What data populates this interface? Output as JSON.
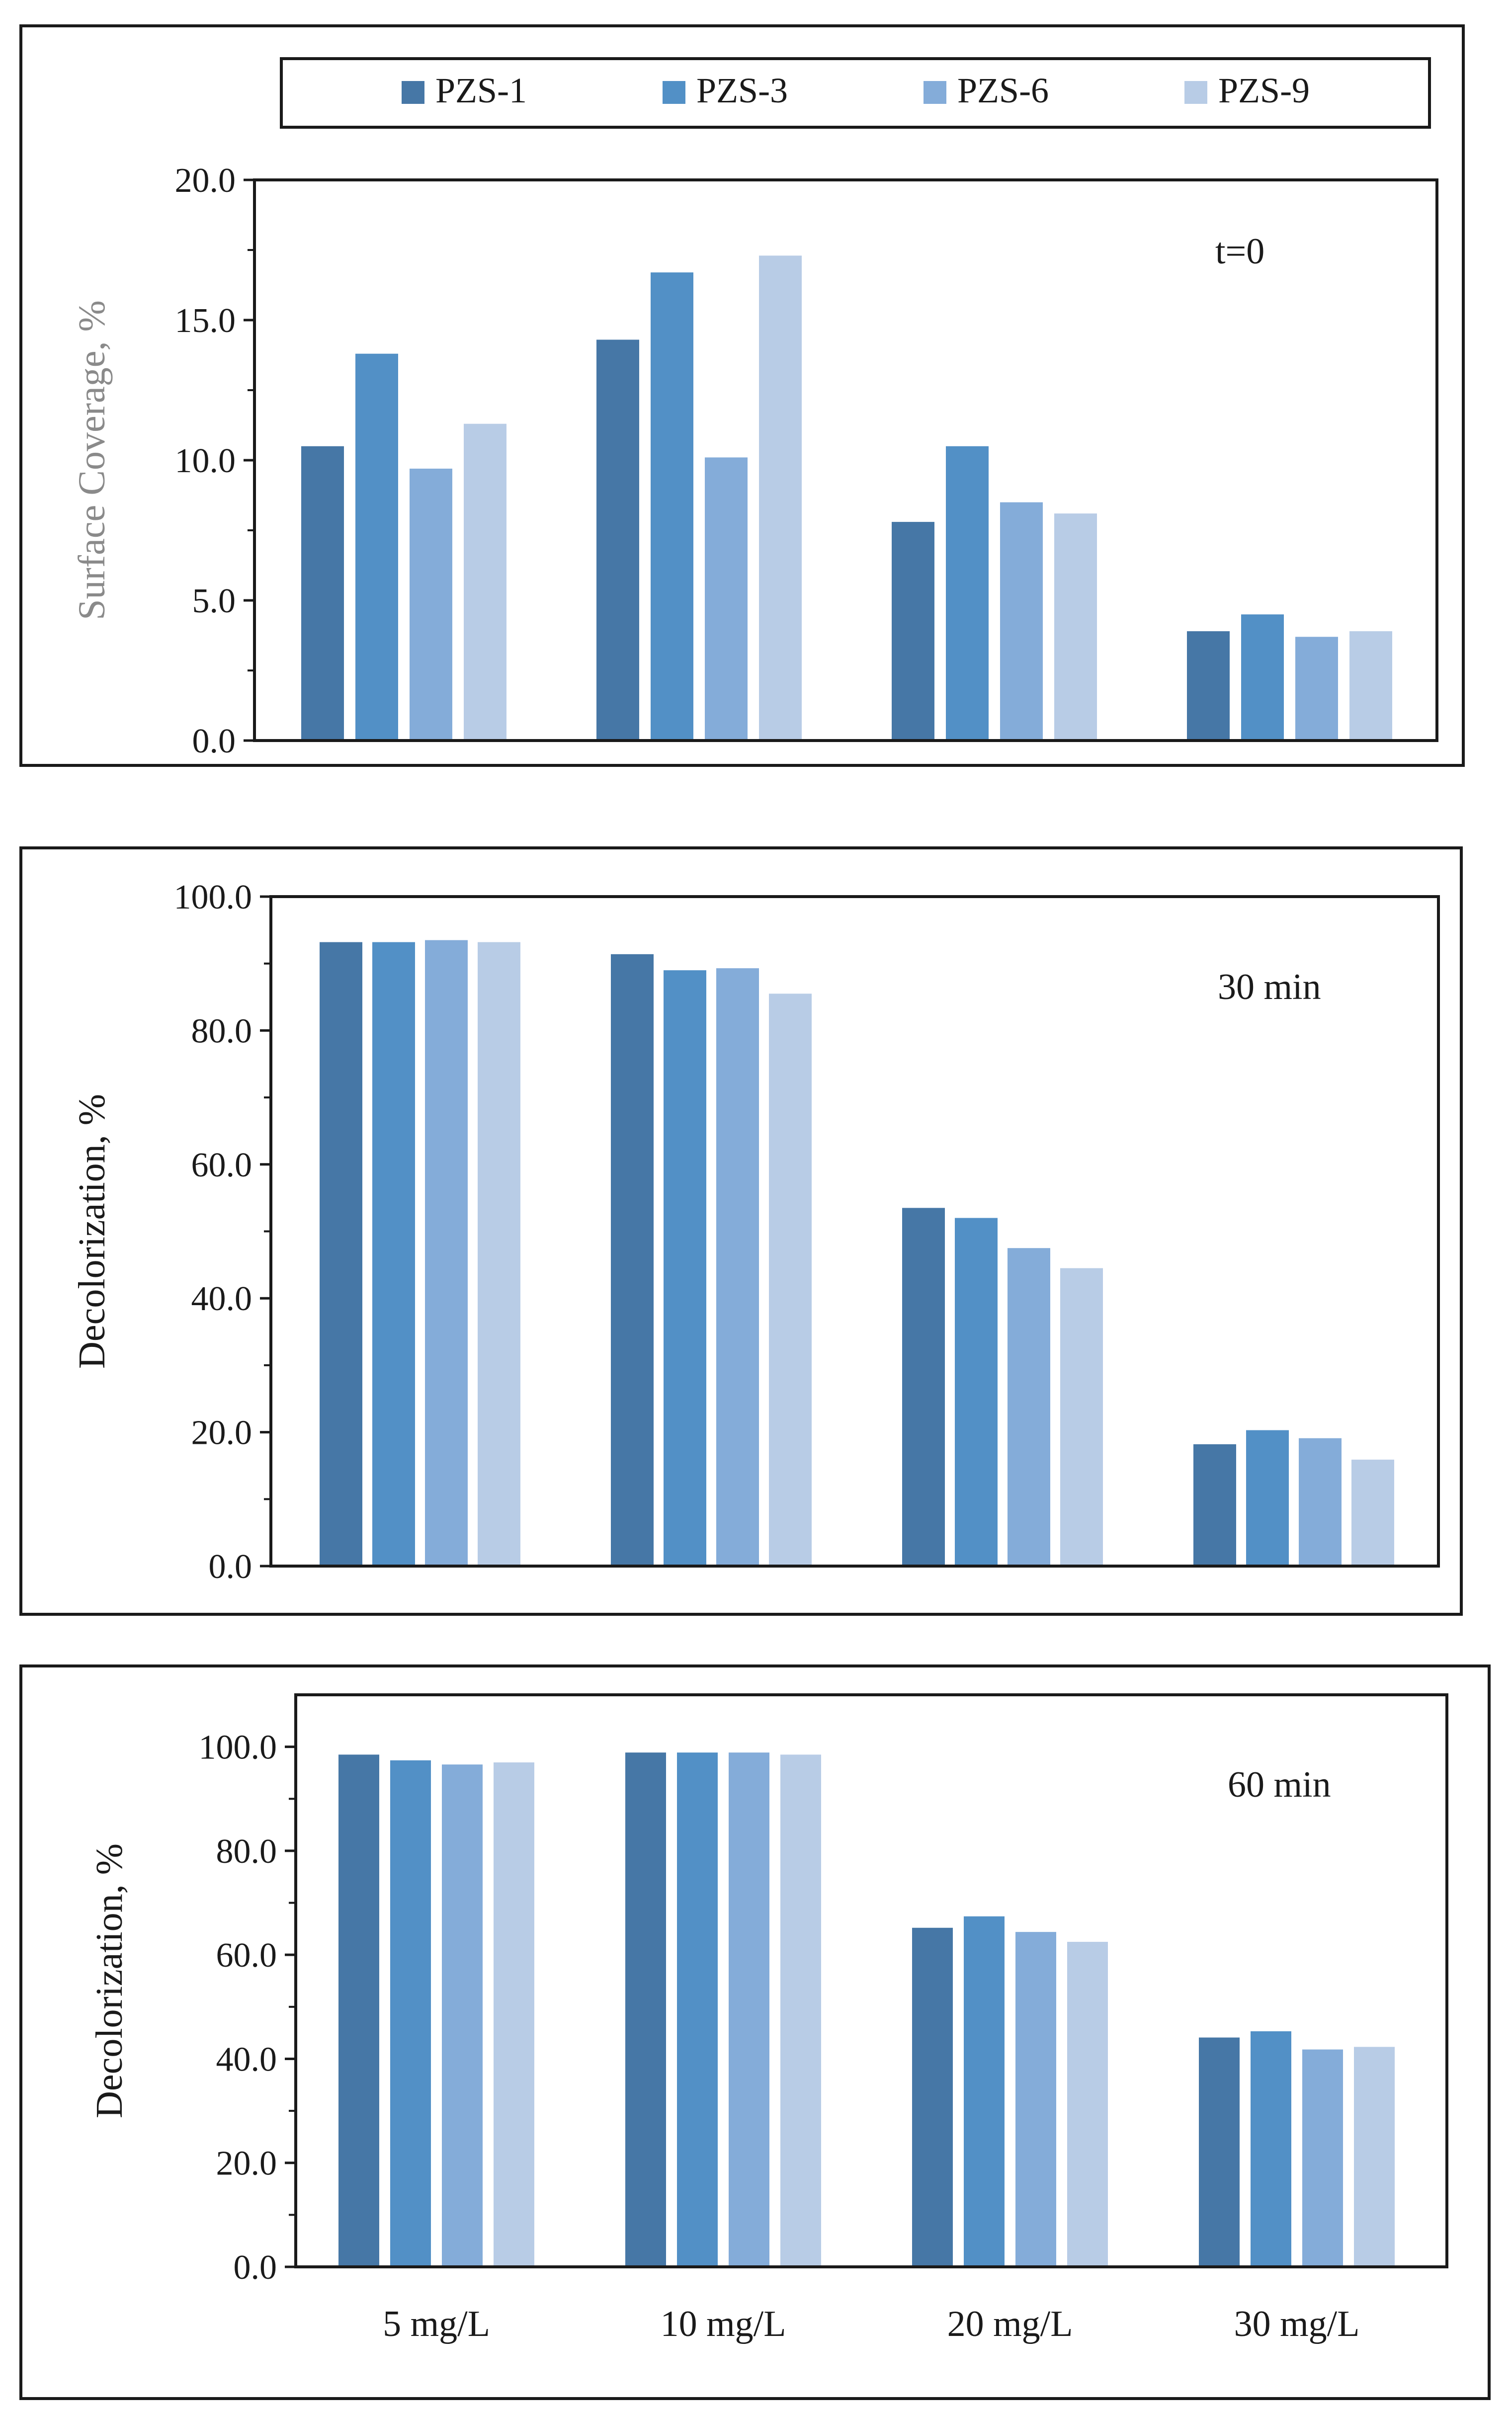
{
  "legend": {
    "series": [
      {
        "name": "PZS-1",
        "color": "#4677a6"
      },
      {
        "name": "PZS-3",
        "color": "#5290c6"
      },
      {
        "name": "PZS-6",
        "color": "#84acd9"
      },
      {
        "name": "PZS-9",
        "color": "#b8cce6"
      }
    ]
  },
  "chart_data": [
    {
      "type": "bar",
      "title": "",
      "annotation": "t=0",
      "categories": [
        "5 mg/L",
        "10 mg/L",
        "20 mg/L",
        "30 mg/L"
      ],
      "show_category_labels": false,
      "xlabel": "",
      "ylabel": "Surface Coverage, %",
      "ylim": [
        0,
        20
      ],
      "yticks": [
        0,
        5,
        10,
        15,
        20
      ],
      "ytick_labels": [
        "0.0",
        "5.0",
        "10.0",
        "15.0",
        "20.0"
      ],
      "grid": false,
      "series": [
        {
          "name": "PZS-1",
          "values": [
            10.5,
            14.3,
            7.8,
            3.9
          ]
        },
        {
          "name": "PZS-3",
          "values": [
            13.8,
            16.7,
            10.5,
            4.5
          ]
        },
        {
          "name": "PZS-6",
          "values": [
            9.7,
            10.1,
            8.5,
            3.7
          ]
        },
        {
          "name": "PZS-9",
          "values": [
            11.3,
            17.3,
            8.1,
            3.9
          ]
        }
      ]
    },
    {
      "type": "bar",
      "title": "",
      "annotation": "30 min",
      "categories": [
        "5 mg/L",
        "10 mg/L",
        "20 mg/L",
        "30 mg/L"
      ],
      "show_category_labels": false,
      "xlabel": "",
      "ylabel": "Decolorization, %",
      "ylim": [
        0,
        100
      ],
      "yticks": [
        0,
        20,
        40,
        60,
        80,
        100
      ],
      "ytick_labels": [
        "0.0",
        "20.0",
        "40.0",
        "60.0",
        "80.0",
        "100.0"
      ],
      "grid": false,
      "series": [
        {
          "name": "PZS-1",
          "values": [
            93.2,
            91.4,
            53.5,
            18.2
          ]
        },
        {
          "name": "PZS-3",
          "values": [
            93.2,
            89.0,
            52.0,
            20.3
          ]
        },
        {
          "name": "PZS-6",
          "values": [
            93.5,
            89.3,
            47.5,
            19.1
          ]
        },
        {
          "name": "PZS-9",
          "values": [
            93.2,
            85.5,
            44.5,
            15.9
          ]
        }
      ]
    },
    {
      "type": "bar",
      "title": "",
      "annotation": "60 min",
      "categories": [
        "5 mg/L",
        "10 mg/L",
        "20 mg/L",
        "30 mg/L"
      ],
      "show_category_labels": true,
      "xlabel": "",
      "ylabel": "Decolorization, %",
      "ylim": [
        0,
        110
      ],
      "yticks": [
        0,
        20,
        40,
        60,
        80,
        100
      ],
      "ytick_labels": [
        "0.0",
        "20.0",
        "40.0",
        "60.0",
        "80.0",
        "100.0"
      ],
      "grid": false,
      "series": [
        {
          "name": "PZS-1",
          "values": [
            98.5,
            98.9,
            65.2,
            44.1
          ]
        },
        {
          "name": "PZS-3",
          "values": [
            97.4,
            98.9,
            67.4,
            45.3
          ]
        },
        {
          "name": "PZS-6",
          "values": [
            96.6,
            98.9,
            64.4,
            41.8
          ]
        },
        {
          "name": "PZS-9",
          "values": [
            97.0,
            98.5,
            62.5,
            42.3
          ]
        }
      ]
    }
  ]
}
